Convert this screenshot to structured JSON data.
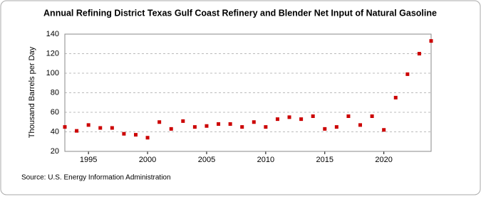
{
  "chart_data": {
    "type": "scatter",
    "title": "Annual Refining District Texas Gulf Coast Refinery and Blender Net Input of Natural Gasoline",
    "y_label": "Thousand Barrels per Day",
    "source": "Source: U.S. Energy Information Administration",
    "x": [
      1993,
      1994,
      1995,
      1996,
      1997,
      1998,
      1999,
      2000,
      2001,
      2002,
      2003,
      2004,
      2005,
      2006,
      2007,
      2008,
      2009,
      2010,
      2011,
      2012,
      2013,
      2014,
      2015,
      2016,
      2017,
      2018,
      2019,
      2020,
      2021,
      2022,
      2023,
      2024
    ],
    "values": [
      45,
      41,
      47,
      44,
      44,
      38,
      37,
      34,
      50,
      43,
      51,
      45,
      46,
      48,
      48,
      45,
      50,
      45,
      53,
      55,
      53,
      56,
      43,
      45,
      56,
      47,
      56,
      42,
      75,
      99,
      120,
      133
    ],
    "color": "#cc0000",
    "xlim": [
      1993,
      2024
    ],
    "xticks": [
      1995,
      2000,
      2005,
      2010,
      2015,
      2020
    ],
    "ylim": [
      20,
      140
    ],
    "yticks": [
      20,
      40,
      60,
      80,
      100,
      120,
      140
    ],
    "grid": true
  }
}
